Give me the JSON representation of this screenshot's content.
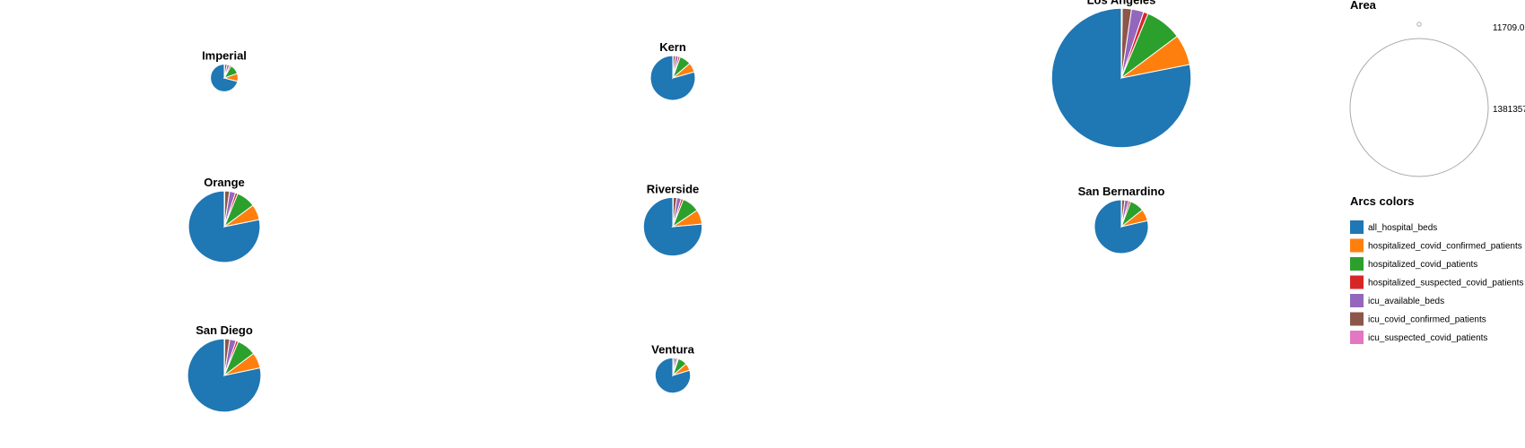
{
  "chart_data": {
    "type": "pie",
    "description_scale": "pie area proportional to total value",
    "series_names": [
      "all_hospital_beds",
      "hospitalized_covid_confirmed_patients",
      "hospitalized_covid_patients",
      "hospitalized_suspected_covid_patients",
      "icu_available_beds",
      "icu_covid_confirmed_patients",
      "icu_suspected_covid_patients"
    ],
    "colors": [
      "#1f77b4",
      "#ff7f0e",
      "#2ca02c",
      "#d62728",
      "#9467bd",
      "#8c564b",
      "#e377c2"
    ],
    "counties": [
      {
        "name": "Imperial",
        "values": [
          39000,
          5200,
          6300,
          1100,
          1600,
          1600,
          200
        ]
      },
      {
        "name": "Kern",
        "values": [
          115000,
          10000,
          12000,
          2000,
          3000,
          2500,
          300
        ]
      },
      {
        "name": "Los Angeles",
        "values": [
          1100000,
          100000,
          120000,
          15000,
          40000,
          30000,
          3000
        ]
      },
      {
        "name": "Orange",
        "values": [
          290000,
          26000,
          32000,
          4000,
          10000,
          8000,
          800
        ]
      },
      {
        "name": "Riverside",
        "values": [
          190000,
          20000,
          24000,
          3000,
          6000,
          5000,
          500
        ]
      },
      {
        "name": "San Bernardino",
        "values": [
          165000,
          15000,
          18000,
          2500,
          5000,
          4000,
          400
        ]
      },
      {
        "name": "San Diego",
        "values": [
          305000,
          27000,
          33000,
          4000,
          11000,
          8500,
          800
        ]
      },
      {
        "name": "Ventura",
        "values": [
          72000,
          6000,
          7500,
          1000,
          2000,
          1500,
          200
        ]
      }
    ],
    "size_legend": {
      "title": "Area",
      "min_label": "11709.0",
      "max_label": "1381357",
      "min_value": 11709,
      "max_value": 1381357
    },
    "color_legend_title": "Arcs colors"
  }
}
